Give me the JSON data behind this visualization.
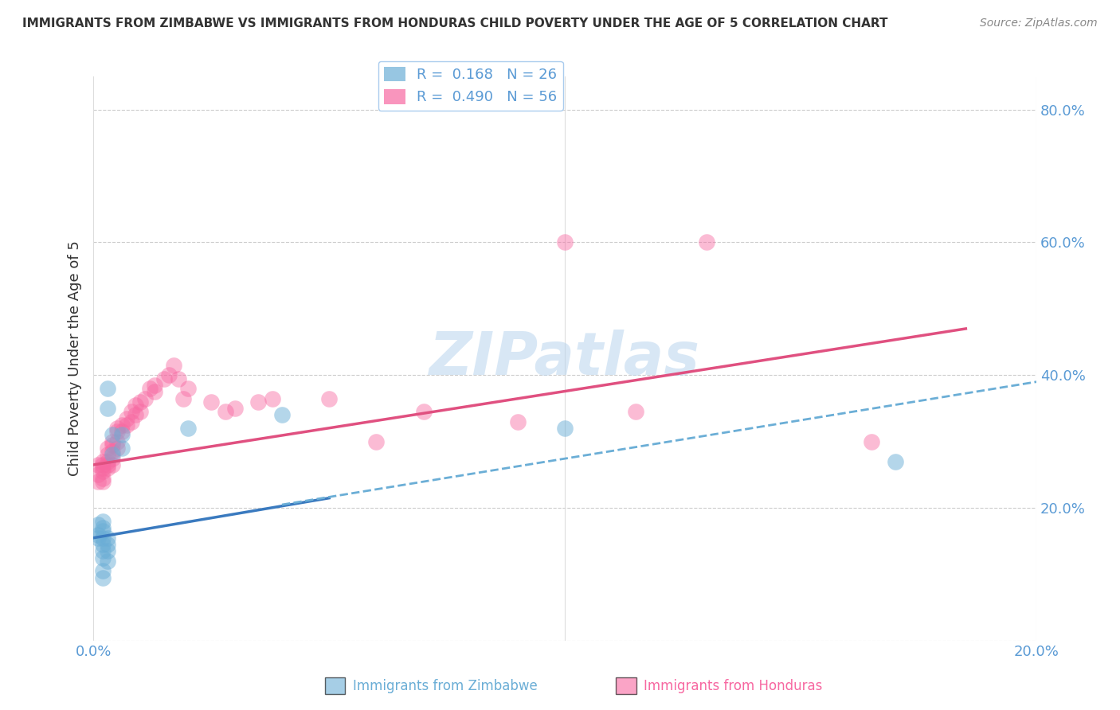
{
  "title": "IMMIGRANTS FROM ZIMBABWE VS IMMIGRANTS FROM HONDURAS CHILD POVERTY UNDER THE AGE OF 5 CORRELATION CHART",
  "source": "Source: ZipAtlas.com",
  "ylabel": "Child Poverty Under the Age of 5",
  "y_ticks": [
    0.0,
    0.2,
    0.4,
    0.6,
    0.8
  ],
  "y_tick_labels": [
    "",
    "20.0%",
    "40.0%",
    "60.0%",
    "80.0%"
  ],
  "legend_entries": [
    {
      "label": "R =  0.168   N = 26",
      "color": "#6baed6"
    },
    {
      "label": "R =  0.490   N = 56",
      "color": "#f768a1"
    }
  ],
  "watermark": "ZIPatlas",
  "zimbabwe_color": "#6baed6",
  "honduras_color": "#f768a1",
  "background_color": "#ffffff",
  "grid_color": "#cccccc",
  "zimbabwe_scatter": [
    [
      0.001,
      0.175
    ],
    [
      0.001,
      0.16
    ],
    [
      0.001,
      0.155
    ],
    [
      0.002,
      0.18
    ],
    [
      0.002,
      0.17
    ],
    [
      0.002,
      0.165
    ],
    [
      0.002,
      0.155
    ],
    [
      0.002,
      0.145
    ],
    [
      0.002,
      0.135
    ],
    [
      0.002,
      0.125
    ],
    [
      0.002,
      0.105
    ],
    [
      0.002,
      0.095
    ],
    [
      0.003,
      0.155
    ],
    [
      0.003,
      0.145
    ],
    [
      0.003,
      0.135
    ],
    [
      0.003,
      0.12
    ],
    [
      0.003,
      0.38
    ],
    [
      0.003,
      0.35
    ],
    [
      0.004,
      0.31
    ],
    [
      0.004,
      0.28
    ],
    [
      0.006,
      0.31
    ],
    [
      0.006,
      0.29
    ],
    [
      0.02,
      0.32
    ],
    [
      0.04,
      0.34
    ],
    [
      0.1,
      0.32
    ],
    [
      0.17,
      0.27
    ]
  ],
  "honduras_scatter": [
    [
      0.001,
      0.265
    ],
    [
      0.001,
      0.25
    ],
    [
      0.001,
      0.24
    ],
    [
      0.002,
      0.27
    ],
    [
      0.002,
      0.265
    ],
    [
      0.002,
      0.26
    ],
    [
      0.002,
      0.255
    ],
    [
      0.002,
      0.245
    ],
    [
      0.002,
      0.24
    ],
    [
      0.003,
      0.29
    ],
    [
      0.003,
      0.28
    ],
    [
      0.003,
      0.27
    ],
    [
      0.003,
      0.265
    ],
    [
      0.003,
      0.26
    ],
    [
      0.004,
      0.3
    ],
    [
      0.004,
      0.295
    ],
    [
      0.004,
      0.285
    ],
    [
      0.004,
      0.275
    ],
    [
      0.004,
      0.265
    ],
    [
      0.005,
      0.315
    ],
    [
      0.005,
      0.3
    ],
    [
      0.005,
      0.29
    ],
    [
      0.005,
      0.32
    ],
    [
      0.006,
      0.325
    ],
    [
      0.006,
      0.315
    ],
    [
      0.007,
      0.335
    ],
    [
      0.007,
      0.325
    ],
    [
      0.008,
      0.345
    ],
    [
      0.008,
      0.33
    ],
    [
      0.009,
      0.355
    ],
    [
      0.009,
      0.34
    ],
    [
      0.01,
      0.345
    ],
    [
      0.01,
      0.36
    ],
    [
      0.011,
      0.365
    ],
    [
      0.012,
      0.38
    ],
    [
      0.013,
      0.385
    ],
    [
      0.013,
      0.375
    ],
    [
      0.015,
      0.395
    ],
    [
      0.016,
      0.4
    ],
    [
      0.017,
      0.415
    ],
    [
      0.018,
      0.395
    ],
    [
      0.019,
      0.365
    ],
    [
      0.02,
      0.38
    ],
    [
      0.025,
      0.36
    ],
    [
      0.028,
      0.345
    ],
    [
      0.03,
      0.35
    ],
    [
      0.035,
      0.36
    ],
    [
      0.038,
      0.365
    ],
    [
      0.05,
      0.365
    ],
    [
      0.06,
      0.3
    ],
    [
      0.07,
      0.345
    ],
    [
      0.09,
      0.33
    ],
    [
      0.1,
      0.6
    ],
    [
      0.115,
      0.345
    ],
    [
      0.13,
      0.6
    ],
    [
      0.165,
      0.3
    ]
  ],
  "zimbabwe_line_solid": [
    [
      0.0,
      0.155
    ],
    [
      0.05,
      0.215
    ]
  ],
  "zimbabwe_line_dashed": [
    [
      0.04,
      0.205
    ],
    [
      0.2,
      0.39
    ]
  ],
  "honduras_line": [
    [
      0.0,
      0.265
    ],
    [
      0.185,
      0.47
    ]
  ],
  "xlim": [
    0.0,
    0.2
  ],
  "ylim": [
    0.0,
    0.85
  ]
}
